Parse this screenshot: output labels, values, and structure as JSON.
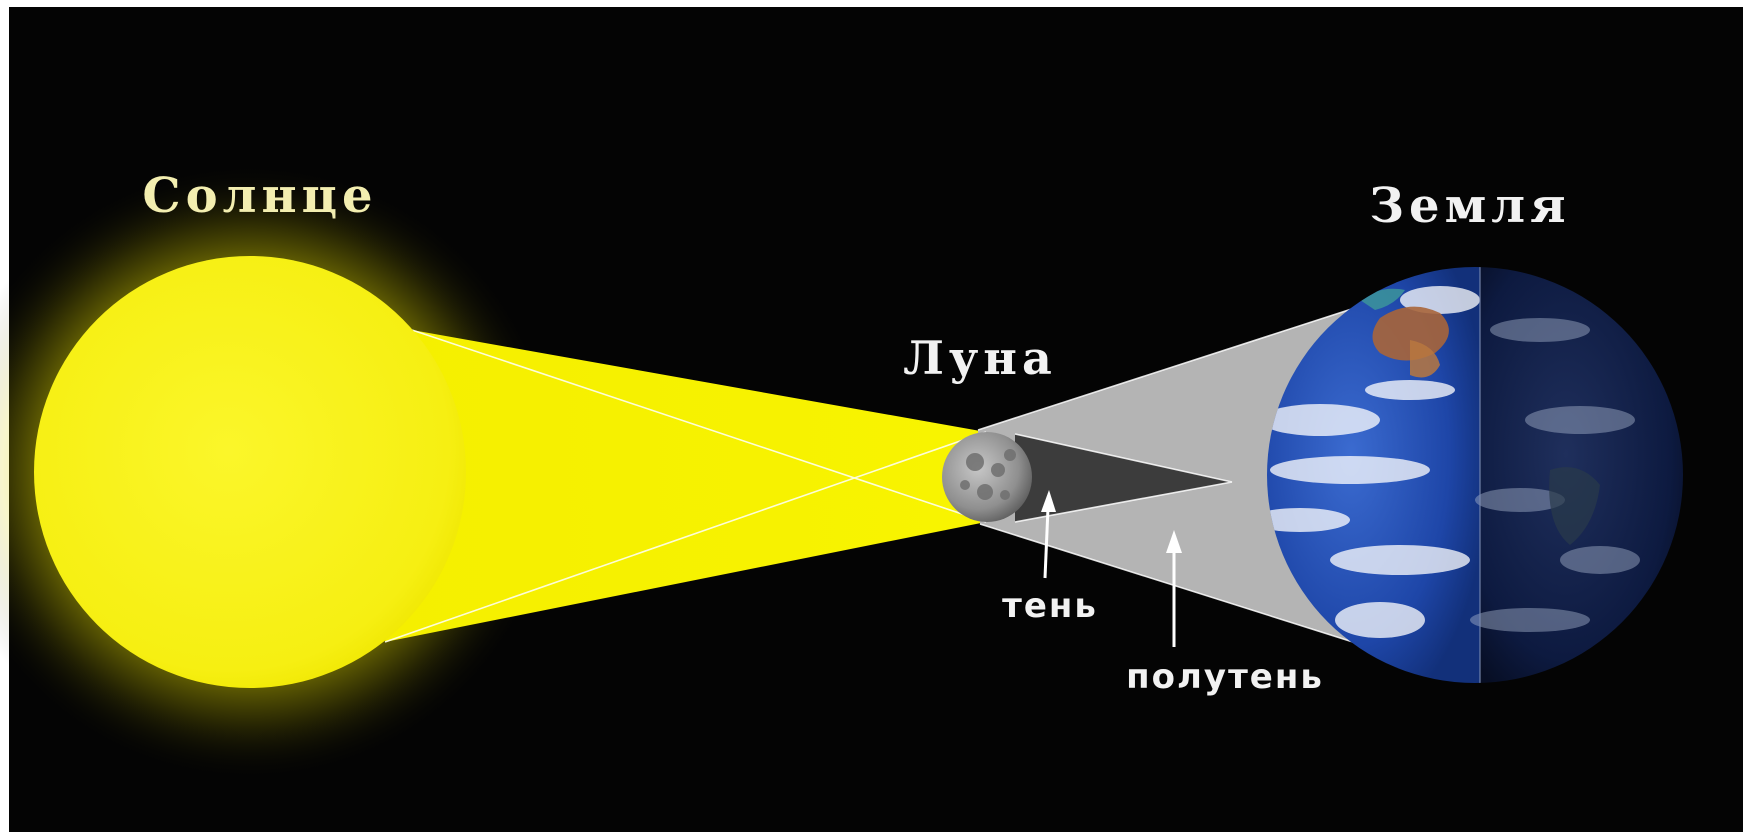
{
  "labels": {
    "sun": "Солнце",
    "moon": "Луна",
    "earth": "Земля",
    "umbra": "тень",
    "penumbra": "полутень"
  },
  "colors": {
    "background": "#040404",
    "frame": "#ffffff",
    "sun": "#f8f21a",
    "sun_glow": "#fff600",
    "sun_label": "#f3eeb0",
    "light_beam": "#f6f200",
    "penumbra": "#b4b4b4",
    "umbra": "#3c3c3c",
    "moon": "#9a9a9a",
    "ocean": "#1d3f9a",
    "earth_night": "#0b1634",
    "label_white": "#f2f2f2"
  },
  "icons": {
    "sun": "sun-disc-icon",
    "moon": "moon-icon",
    "earth": "earth-globe-icon",
    "arrows": "up-arrow-icon"
  }
}
